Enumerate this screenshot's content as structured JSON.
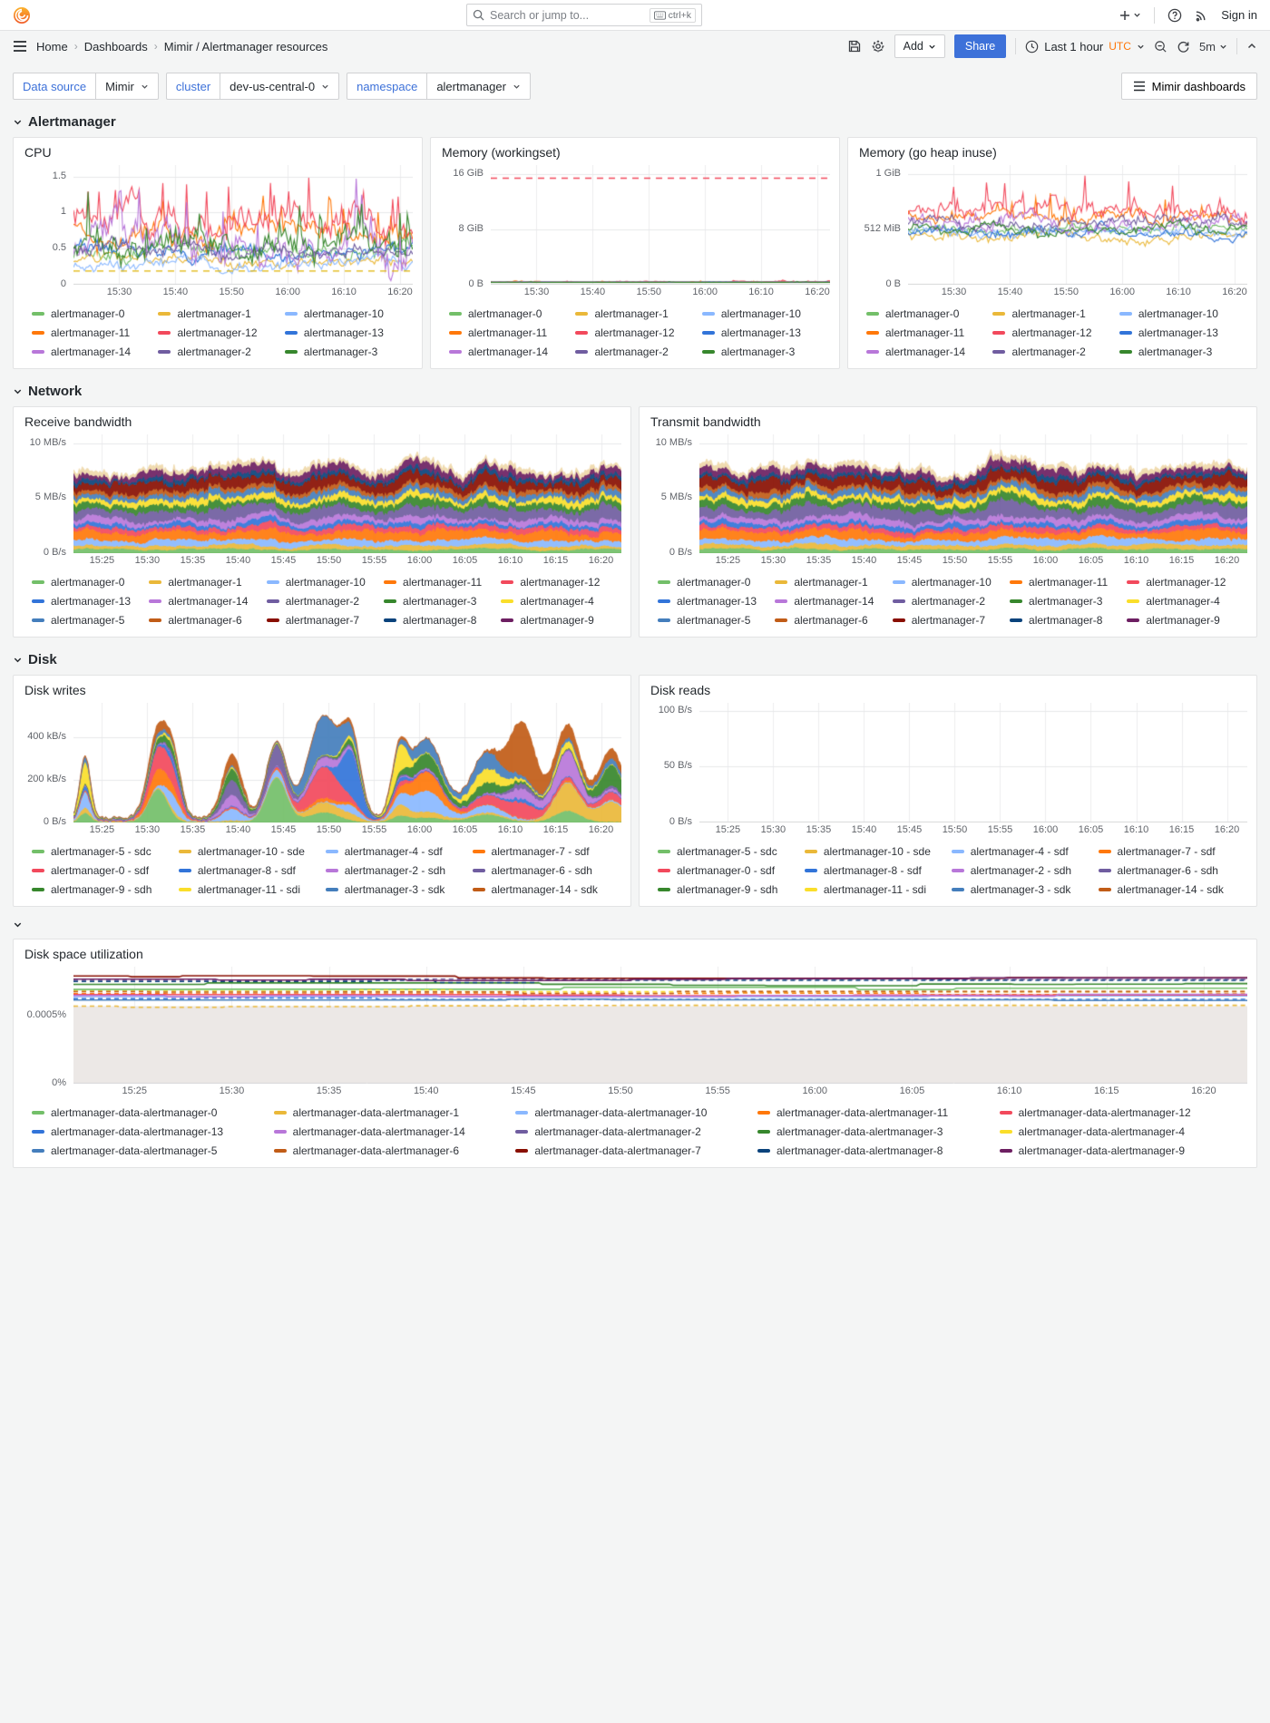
{
  "nav": {
    "search_placeholder": "Search or jump to...",
    "shortcut": "ctrl+k",
    "sign_in": "Sign in"
  },
  "breadcrumb": {
    "items": [
      "Home",
      "Dashboards",
      "Mimir / Alertmanager resources"
    ]
  },
  "toolbar": {
    "add_label": "Add",
    "share_label": "Share",
    "time_range": "Last 1 hour",
    "timezone": "UTC",
    "refresh_interval": "5m"
  },
  "filters": {
    "datasource_label": "Data source",
    "datasource_value": "Mimir",
    "cluster_label": "cluster",
    "cluster_value": "dev-us-central-0",
    "namespace_label": "namespace",
    "namespace_value": "alertmanager",
    "dashboards_button": "Mimir dashboards"
  },
  "sections": {
    "alertmanager": "Alertmanager",
    "network": "Network",
    "disk": "Disk",
    "unnamed": ""
  },
  "icons": {
    "grafana_logo": "grafana-flame",
    "nav": [
      "search-icon",
      "keyboard-icon",
      "plus-icon",
      "help-icon",
      "rss-icon"
    ],
    "toolbar": [
      "menu-icon",
      "save-icon",
      "gear-icon",
      "clock-icon",
      "zoom-out-icon",
      "refresh-icon",
      "chevron-up-icon"
    ]
  },
  "colors": {
    "accent_blue": "#3d71d9",
    "timezone_orange": "#ff780a",
    "page_bg": "#f4f5f5",
    "panel_bg": "#ffffff"
  },
  "chart_data": [
    {
      "type": "line",
      "title": "CPU",
      "seed": 11,
      "ylim": [
        0,
        1.66
      ],
      "grid": true,
      "legend_position": "bottom",
      "legend_cols": 3,
      "yticks": [
        {
          "v": 1.5,
          "l": "1.5"
        },
        {
          "v": 1.0,
          "l": "1"
        },
        {
          "v": 0.5,
          "l": "0.5"
        },
        {
          "v": 0,
          "l": "0"
        }
      ],
      "xticks": [
        "15:30",
        "15:40",
        "15:50",
        "16:00",
        "16:10",
        "16:20"
      ],
      "x0": 0.135,
      "dx": 0.1655,
      "thresholds": [
        {
          "v": 0.19,
          "color": "#E0B400"
        }
      ],
      "series": [
        {
          "name": "alertmanager-0",
          "color": "#73BF69",
          "mean": 0.45,
          "amp": 0.12
        },
        {
          "name": "alertmanager-1",
          "color": "#EAB839",
          "mean": 0.33,
          "amp": 0.08
        },
        {
          "name": "alertmanager-10",
          "color": "#8AB8FF",
          "mean": 0.3,
          "amp": 0.09
        },
        {
          "name": "alertmanager-11",
          "color": "#FF780A",
          "mean": 0.72,
          "amp": 0.18,
          "spike": 0.06
        },
        {
          "name": "alertmanager-12",
          "color": "#F2495C",
          "mean": 0.92,
          "amp": 0.24,
          "spike": 0.08
        },
        {
          "name": "alertmanager-13",
          "color": "#3274D9",
          "mean": 0.45,
          "amp": 0.12
        },
        {
          "name": "alertmanager-14",
          "color": "#B877D9",
          "mean": 0.58,
          "amp": 0.26,
          "spike": 0.07
        },
        {
          "name": "alertmanager-2",
          "color": "#705DA0",
          "mean": 0.47,
          "amp": 0.1
        },
        {
          "name": "alertmanager-3",
          "color": "#37872D",
          "mean": 0.52,
          "amp": 0.22,
          "spike": 0.06
        }
      ]
    },
    {
      "type": "line",
      "title": "Memory (workingset)",
      "seed": 22,
      "unit": "GiB",
      "ylim": [
        0,
        17.3
      ],
      "grid": true,
      "legend_position": "bottom",
      "legend_cols": 3,
      "yticks": [
        {
          "v": 16,
          "l": "16 GiB"
        },
        {
          "v": 8,
          "l": "8 GiB"
        },
        {
          "v": 0,
          "l": "0 B"
        }
      ],
      "xticks": [
        "15:30",
        "15:40",
        "15:50",
        "16:00",
        "16:10",
        "16:20"
      ],
      "x0": 0.135,
      "dx": 0.1655,
      "thresholds": [
        {
          "v": 15.4,
          "color": "#F2495C"
        }
      ],
      "series": [
        {
          "name": "alertmanager-0",
          "color": "#73BF69",
          "mean": 0.25,
          "amp": 0.14
        },
        {
          "name": "alertmanager-1",
          "color": "#EAB839",
          "mean": 0.22,
          "amp": 0.12
        },
        {
          "name": "alertmanager-10",
          "color": "#8AB8FF",
          "mean": 0.24,
          "amp": 0.12
        },
        {
          "name": "alertmanager-11",
          "color": "#FF780A",
          "mean": 0.3,
          "amp": 0.16
        },
        {
          "name": "alertmanager-12",
          "color": "#F2495C",
          "mean": 0.34,
          "amp": 0.18
        },
        {
          "name": "alertmanager-13",
          "color": "#3274D9",
          "mean": 0.24,
          "amp": 0.12
        },
        {
          "name": "alertmanager-14",
          "color": "#B877D9",
          "mean": 0.28,
          "amp": 0.14
        },
        {
          "name": "alertmanager-2",
          "color": "#705DA0",
          "mean": 0.25,
          "amp": 0.12
        },
        {
          "name": "alertmanager-3",
          "color": "#37872D",
          "mean": 0.26,
          "amp": 0.13
        }
      ]
    },
    {
      "type": "line",
      "title": "Memory (go heap inuse)",
      "seed": 33,
      "unit": "GiB",
      "ylim": [
        0,
        1.08
      ],
      "grid": true,
      "legend_position": "bottom",
      "legend_cols": 3,
      "yticks": [
        {
          "v": 1,
          "l": "1 GiB"
        },
        {
          "v": 0.5,
          "l": "512 MiB"
        },
        {
          "v": 0,
          "l": "0 B"
        }
      ],
      "xticks": [
        "15:30",
        "15:40",
        "15:50",
        "16:00",
        "16:10",
        "16:20"
      ],
      "x0": 0.135,
      "dx": 0.1655,
      "thresholds": [],
      "series": [
        {
          "name": "alertmanager-0",
          "color": "#73BF69",
          "mean": 0.5,
          "amp": 0.05
        },
        {
          "name": "alertmanager-1",
          "color": "#EAB839",
          "mean": 0.43,
          "amp": 0.05
        },
        {
          "name": "alertmanager-10",
          "color": "#8AB8FF",
          "mean": 0.47,
          "amp": 0.05
        },
        {
          "name": "alertmanager-11",
          "color": "#FF780A",
          "mean": 0.61,
          "amp": 0.07,
          "spike": 0.05
        },
        {
          "name": "alertmanager-12",
          "color": "#F2495C",
          "mean": 0.67,
          "amp": 0.1,
          "spike": 0.1
        },
        {
          "name": "alertmanager-13",
          "color": "#3274D9",
          "mean": 0.48,
          "amp": 0.05
        },
        {
          "name": "alertmanager-14",
          "color": "#B877D9",
          "mean": 0.56,
          "amp": 0.07
        },
        {
          "name": "alertmanager-2",
          "color": "#705DA0",
          "mean": 0.57,
          "amp": 0.06
        },
        {
          "name": "alertmanager-3",
          "color": "#37872D",
          "mean": 0.5,
          "amp": 0.05
        }
      ]
    },
    {
      "type": "stacked-area",
      "title": "Receive bandwidth",
      "seed": 44,
      "unit": "MB/s",
      "ylim": [
        0,
        10.8
      ],
      "grid": true,
      "legend_position": "bottom",
      "legend_cols": 5,
      "yticks": [
        {
          "v": 10,
          "l": "10 MB/s"
        },
        {
          "v": 5,
          "l": "5 MB/s"
        },
        {
          "v": 0,
          "l": "0 B/s"
        }
      ],
      "xticks": [
        "15:25",
        "15:30",
        "15:35",
        "15:40",
        "15:45",
        "15:50",
        "15:55",
        "16:00",
        "16:05",
        "16:10",
        "16:15",
        "16:20"
      ],
      "x0": 0.052,
      "dx": 0.0828,
      "cap_color": "#EFD8A9",
      "cap_mean": 0.32,
      "series": [
        {
          "name": "alertmanager-0",
          "color": "#73BF69",
          "mean": 0.35
        },
        {
          "name": "alertmanager-1",
          "color": "#EAB839",
          "mean": 0.33
        },
        {
          "name": "alertmanager-10",
          "color": "#8AB8FF",
          "mean": 0.5
        },
        {
          "name": "alertmanager-11",
          "color": "#FF780A",
          "mean": 0.75
        },
        {
          "name": "alertmanager-12",
          "color": "#F2495C",
          "mean": 0.42
        },
        {
          "name": "alertmanager-13",
          "color": "#3274D9",
          "mean": 0.35
        },
        {
          "name": "alertmanager-14",
          "color": "#B877D9",
          "mean": 0.45
        },
        {
          "name": "alertmanager-2",
          "color": "#705DA0",
          "mean": 0.9
        },
        {
          "name": "alertmanager-3",
          "color": "#37872D",
          "mean": 0.55
        },
        {
          "name": "alertmanager-4",
          "color": "#FADE2A",
          "mean": 0.45
        },
        {
          "name": "alertmanager-5",
          "color": "#447EBC",
          "mean": 0.45
        },
        {
          "name": "alertmanager-6",
          "color": "#C15C17",
          "mean": 0.35
        },
        {
          "name": "alertmanager-7",
          "color": "#890F02",
          "mean": 0.8
        },
        {
          "name": "alertmanager-8",
          "color": "#0A437C",
          "mean": 0.33
        },
        {
          "name": "alertmanager-9",
          "color": "#6D1F62",
          "mean": 0.55
        }
      ]
    },
    {
      "type": "stacked-area",
      "title": "Transmit bandwidth",
      "seed": 55,
      "unit": "MB/s",
      "ylim": [
        0,
        10.8
      ],
      "grid": true,
      "legend_position": "bottom",
      "legend_cols": 5,
      "yticks": [
        {
          "v": 10,
          "l": "10 MB/s"
        },
        {
          "v": 5,
          "l": "5 MB/s"
        },
        {
          "v": 0,
          "l": "0 B/s"
        }
      ],
      "xticks": [
        "15:25",
        "15:30",
        "15:35",
        "15:40",
        "15:45",
        "15:50",
        "15:55",
        "16:00",
        "16:05",
        "16:10",
        "16:15",
        "16:20"
      ],
      "x0": 0.052,
      "dx": 0.0828,
      "cap_color": "#EFD8A9",
      "cap_mean": 0.35,
      "series": [
        {
          "name": "alertmanager-0",
          "color": "#73BF69",
          "mean": 0.35
        },
        {
          "name": "alertmanager-1",
          "color": "#EAB839",
          "mean": 0.35
        },
        {
          "name": "alertmanager-10",
          "color": "#8AB8FF",
          "mean": 0.52
        },
        {
          "name": "alertmanager-11",
          "color": "#FF780A",
          "mean": 0.72
        },
        {
          "name": "alertmanager-12",
          "color": "#F2495C",
          "mean": 0.42
        },
        {
          "name": "alertmanager-13",
          "color": "#3274D9",
          "mean": 0.36
        },
        {
          "name": "alertmanager-14",
          "color": "#B877D9",
          "mean": 0.48
        },
        {
          "name": "alertmanager-2",
          "color": "#705DA0",
          "mean": 0.88
        },
        {
          "name": "alertmanager-3",
          "color": "#37872D",
          "mean": 0.58
        },
        {
          "name": "alertmanager-4",
          "color": "#FADE2A",
          "mean": 0.48
        },
        {
          "name": "alertmanager-5",
          "color": "#447EBC",
          "mean": 0.45
        },
        {
          "name": "alertmanager-6",
          "color": "#C15C17",
          "mean": 0.36
        },
        {
          "name": "alertmanager-7",
          "color": "#890F02",
          "mean": 0.78
        },
        {
          "name": "alertmanager-8",
          "color": "#0A437C",
          "mean": 0.34
        },
        {
          "name": "alertmanager-9",
          "color": "#6D1F62",
          "mean": 0.52
        }
      ]
    },
    {
      "type": "stacked-spiky",
      "title": "Disk writes",
      "seed": 66,
      "unit": "kB/s",
      "ylim": [
        0,
        560
      ],
      "peak": 500,
      "grid": true,
      "legend_position": "bottom",
      "legend_cols": 4,
      "yticks": [
        {
          "v": 400,
          "l": "400 kB/s"
        },
        {
          "v": 200,
          "l": "200 kB/s"
        },
        {
          "v": 0,
          "l": "0 B/s"
        }
      ],
      "xticks": [
        "15:25",
        "15:30",
        "15:35",
        "15:40",
        "15:45",
        "15:50",
        "15:55",
        "16:00",
        "16:05",
        "16:10",
        "16:15",
        "16:20"
      ],
      "x0": 0.052,
      "dx": 0.0828,
      "series": [
        {
          "name": "alertmanager-5 - sdc",
          "color": "#73BF69"
        },
        {
          "name": "alertmanager-10 - sde",
          "color": "#EAB839"
        },
        {
          "name": "alertmanager-4 - sdf",
          "color": "#8AB8FF"
        },
        {
          "name": "alertmanager-7 - sdf",
          "color": "#FF780A"
        },
        {
          "name": "alertmanager-0 - sdf",
          "color": "#F2495C"
        },
        {
          "name": "alertmanager-8 - sdf",
          "color": "#3274D9"
        },
        {
          "name": "alertmanager-2 - sdh",
          "color": "#B877D9"
        },
        {
          "name": "alertmanager-6 - sdh",
          "color": "#705DA0"
        },
        {
          "name": "alertmanager-9 - sdh",
          "color": "#37872D"
        },
        {
          "name": "alertmanager-11 - sdi",
          "color": "#FADE2A"
        },
        {
          "name": "alertmanager-3 - sdk",
          "color": "#447EBC"
        },
        {
          "name": "alertmanager-14 - sdk",
          "color": "#C15C17"
        }
      ]
    },
    {
      "type": "empty",
      "title": "Disk reads",
      "seed": 77,
      "unit": "B/s",
      "ylim": [
        0,
        107
      ],
      "grid": true,
      "legend_position": "bottom",
      "legend_cols": 4,
      "yticks": [
        {
          "v": 100,
          "l": "100 B/s"
        },
        {
          "v": 50,
          "l": "50 B/s"
        },
        {
          "v": 0,
          "l": "0 B/s"
        }
      ],
      "xticks": [
        "15:25",
        "15:30",
        "15:35",
        "15:40",
        "15:45",
        "15:50",
        "15:55",
        "16:00",
        "16:05",
        "16:10",
        "16:15",
        "16:20"
      ],
      "x0": 0.052,
      "dx": 0.0828,
      "series": [
        {
          "name": "alertmanager-5 - sdc",
          "color": "#73BF69"
        },
        {
          "name": "alertmanager-10 - sde",
          "color": "#EAB839"
        },
        {
          "name": "alertmanager-4 - sdf",
          "color": "#8AB8FF"
        },
        {
          "name": "alertmanager-7 - sdf",
          "color": "#FF780A"
        },
        {
          "name": "alertmanager-0 - sdf",
          "color": "#F2495C"
        },
        {
          "name": "alertmanager-8 - sdf",
          "color": "#3274D9"
        },
        {
          "name": "alertmanager-2 - sdh",
          "color": "#B877D9"
        },
        {
          "name": "alertmanager-6 - sdh",
          "color": "#705DA0"
        },
        {
          "name": "alertmanager-9 - sdh",
          "color": "#37872D"
        },
        {
          "name": "alertmanager-11 - sdi",
          "color": "#FADE2A"
        },
        {
          "name": "alertmanager-3 - sdk",
          "color": "#447EBC"
        },
        {
          "name": "alertmanager-14 - sdk",
          "color": "#C15C17"
        }
      ]
    },
    {
      "type": "flat-lines",
      "title": "Disk space utilization",
      "seed": 88,
      "unit": "%",
      "ylim": [
        0,
        0.00086
      ],
      "grid": true,
      "legend_position": "bottom",
      "legend_cols": 5,
      "fill_below": "#ece8e6",
      "yticks": [
        {
          "v": 0.0005,
          "l": "0.0005%"
        },
        {
          "v": 0,
          "l": "0%"
        }
      ],
      "xticks": [
        "15:25",
        "15:30",
        "15:35",
        "15:40",
        "15:45",
        "15:50",
        "15:55",
        "16:00",
        "16:05",
        "16:10",
        "16:15",
        "16:20"
      ],
      "x0": 0.052,
      "dx": 0.0828,
      "series": [
        {
          "name": "alertmanager-data-alertmanager-0",
          "color": "#73BF69",
          "value": 0.0007
        },
        {
          "name": "alertmanager-data-alertmanager-1",
          "color": "#EAB839",
          "value": 0.00057
        },
        {
          "name": "alertmanager-data-alertmanager-10",
          "color": "#8AB8FF",
          "value": 0.00064
        },
        {
          "name": "alertmanager-data-alertmanager-11",
          "color": "#FF780A",
          "value": 0.000662
        },
        {
          "name": "alertmanager-data-alertmanager-12",
          "color": "#F2495C",
          "value": 0.000655
        },
        {
          "name": "alertmanager-data-alertmanager-13",
          "color": "#3274D9",
          "value": 0.000625
        },
        {
          "name": "alertmanager-data-alertmanager-14",
          "color": "#B877D9",
          "value": 0.000648
        },
        {
          "name": "alertmanager-data-alertmanager-2",
          "color": "#705DA0",
          "value": 0.00076
        },
        {
          "name": "alertmanager-data-alertmanager-3",
          "color": "#37872D",
          "value": 0.00073
        },
        {
          "name": "alertmanager-data-alertmanager-4",
          "color": "#FADE2A",
          "value": 0.00068
        },
        {
          "name": "alertmanager-data-alertmanager-5",
          "color": "#447EBC",
          "value": 0.000615
        },
        {
          "name": "alertmanager-data-alertmanager-6",
          "color": "#C15C17",
          "value": 0.000672
        },
        {
          "name": "alertmanager-data-alertmanager-7",
          "color": "#890F02",
          "value": 0.000782
        },
        {
          "name": "alertmanager-data-alertmanager-8",
          "color": "#0A437C",
          "value": 0.000752
        },
        {
          "name": "alertmanager-data-alertmanager-9",
          "color": "#6D1F62",
          "value": 0.000768
        }
      ]
    }
  ]
}
